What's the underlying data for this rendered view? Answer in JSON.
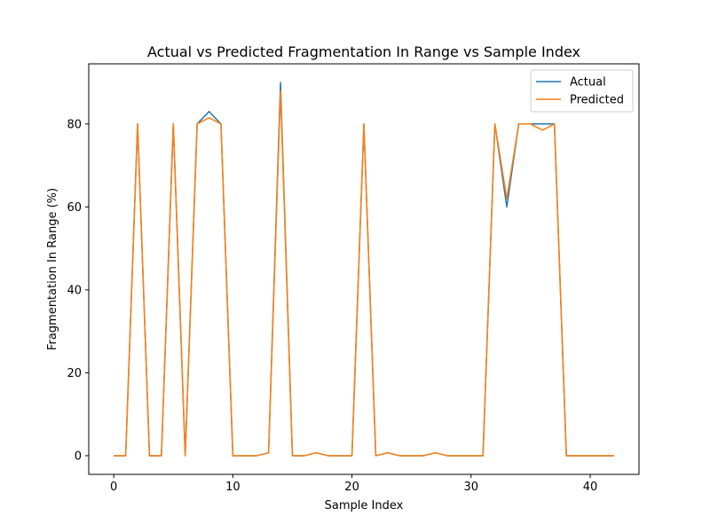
{
  "chart_data": {
    "type": "line",
    "title": "Actual vs Predicted Fragmentation In Range vs Sample Index",
    "xlabel": "Sample Index",
    "ylabel": "Fragmentation In Range (%)",
    "xlim": [
      -2.1,
      44.1
    ],
    "ylim": [
      -4.5,
      94.5
    ],
    "xticks": [
      0,
      10,
      20,
      30,
      40
    ],
    "yticks": [
      0,
      20,
      40,
      60,
      80
    ],
    "grid": false,
    "legend_position": "top-right",
    "x": [
      0,
      1,
      2,
      3,
      4,
      5,
      6,
      7,
      8,
      9,
      10,
      11,
      12,
      13,
      14,
      15,
      16,
      17,
      18,
      19,
      20,
      21,
      22,
      23,
      24,
      25,
      26,
      27,
      28,
      29,
      30,
      31,
      32,
      33,
      34,
      35,
      36,
      37,
      38,
      39,
      40,
      41,
      42
    ],
    "series": [
      {
        "name": "Actual",
        "color": "#1f77b4",
        "values": [
          0,
          0,
          80,
          0,
          0,
          80,
          0,
          80,
          83,
          80,
          0,
          0,
          0,
          0.7,
          90,
          0,
          0,
          0.7,
          0,
          0,
          0,
          80,
          0,
          0.7,
          0,
          0,
          0,
          0.7,
          0,
          0,
          0,
          0,
          80,
          60,
          80,
          80,
          80,
          80,
          0,
          0,
          0,
          0,
          0
        ]
      },
      {
        "name": "Predicted",
        "color": "#ff7f0e",
        "values": [
          0,
          0,
          80,
          0,
          0,
          80,
          0,
          80,
          81.5,
          80,
          0,
          0,
          0,
          0.7,
          88,
          0,
          0,
          0.7,
          0,
          0,
          0,
          80,
          0,
          0.7,
          0,
          0,
          0,
          0.7,
          0,
          0,
          0,
          0,
          80,
          62,
          80,
          80,
          78.5,
          80,
          0,
          0,
          0,
          0,
          0
        ]
      }
    ]
  }
}
